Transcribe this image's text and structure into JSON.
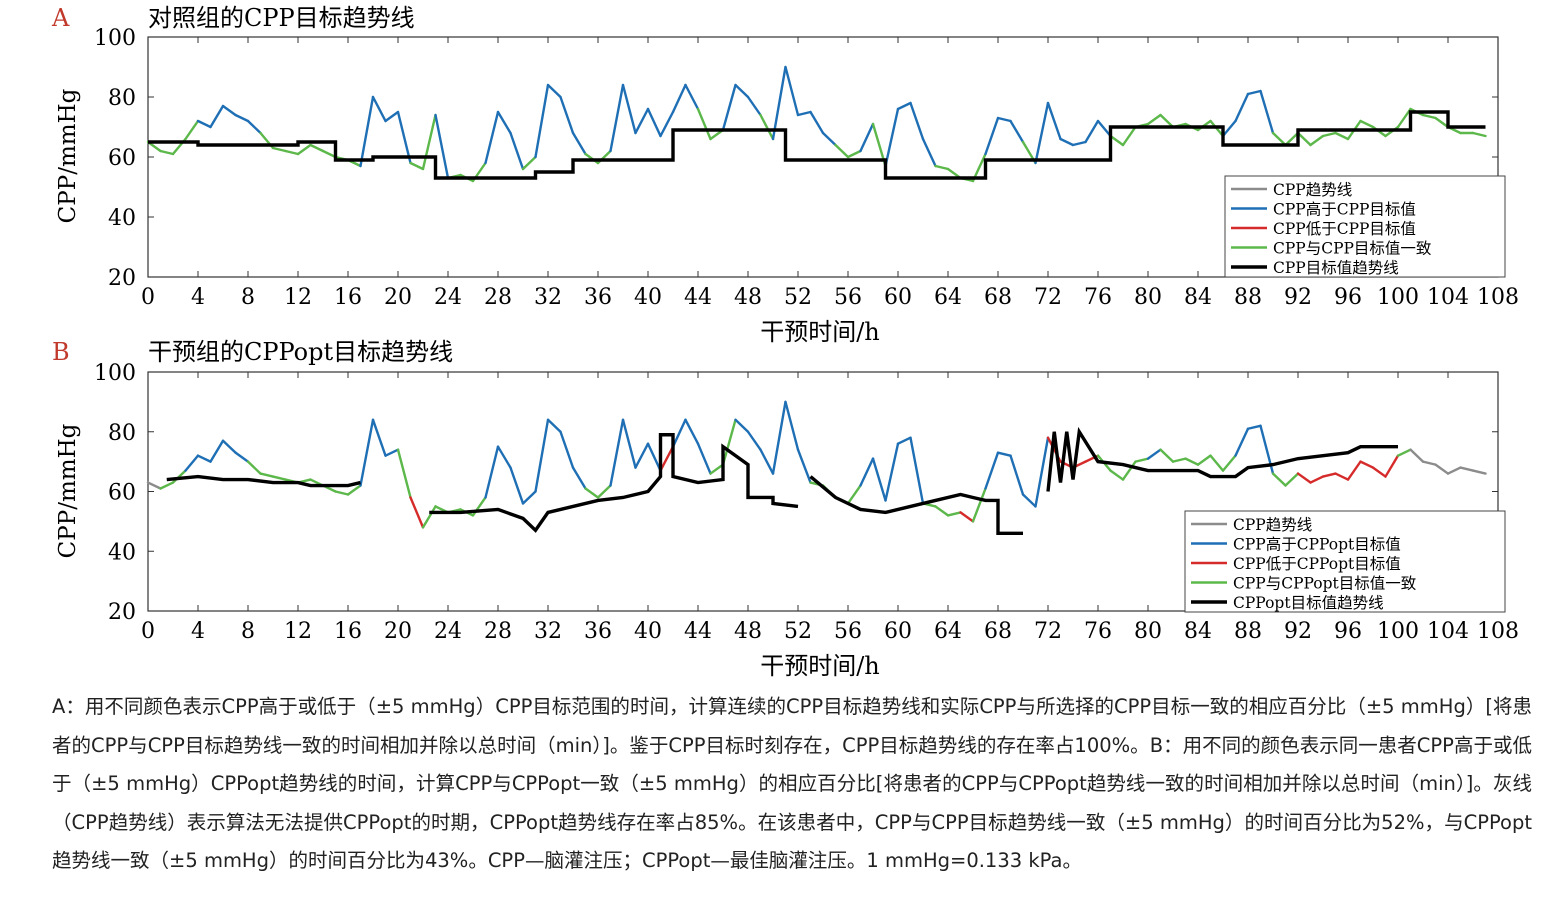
{
  "chart_data": [
    {
      "panel_letter": "A",
      "type": "line",
      "title": "对照组的CPP目标趋势线",
      "xlabel": "干预时间/h",
      "ylabel": "CPP/mmHg",
      "xlim": [
        0,
        108
      ],
      "ylim": [
        20,
        100
      ],
      "xticks": [
        "0",
        "4",
        "8",
        "12",
        "16",
        "20",
        "24",
        "28",
        "32",
        "36",
        "40",
        "44",
        "48",
        "52",
        "56",
        "60",
        "64",
        "68",
        "72",
        "76",
        "80",
        "84",
        "88",
        "92",
        "96",
        "100",
        "104",
        "108"
      ],
      "yticks": [
        "20",
        "40",
        "60",
        "80",
        "100"
      ],
      "grid": false,
      "legend_position": "bottom-right",
      "legend": [
        {
          "label": "CPP趋势线",
          "color": "#8c8c8c"
        },
        {
          "label": "CPP高于CPP目标值",
          "color": "#1f6fb5"
        },
        {
          "label": "CPP低于CPP目标值",
          "color": "#d62b2b"
        },
        {
          "label": "CPP与CPP目标值一致",
          "color": "#5cb84a"
        },
        {
          "label": "CPP目标值趋势线",
          "color": "#000000"
        }
      ],
      "target_trend": [
        [
          0,
          65
        ],
        [
          4,
          65
        ],
        [
          4,
          64
        ],
        [
          12,
          64
        ],
        [
          12,
          65
        ],
        [
          15,
          65
        ],
        [
          15,
          59
        ],
        [
          18,
          59
        ],
        [
          18,
          60
        ],
        [
          23,
          60
        ],
        [
          23,
          53
        ],
        [
          31,
          53
        ],
        [
          31,
          55
        ],
        [
          34,
          55
        ],
        [
          34,
          59
        ],
        [
          42,
          59
        ],
        [
          42,
          69
        ],
        [
          51,
          69
        ],
        [
          51,
          59
        ],
        [
          59,
          59
        ],
        [
          59,
          53
        ],
        [
          67,
          53
        ],
        [
          67,
          59
        ],
        [
          77,
          59
        ],
        [
          77,
          70
        ],
        [
          86,
          70
        ],
        [
          86,
          64
        ],
        [
          92,
          64
        ],
        [
          92,
          69
        ],
        [
          101,
          69
        ],
        [
          101,
          75
        ],
        [
          104,
          75
        ],
        [
          104,
          70
        ],
        [
          107,
          70
        ]
      ],
      "cpp_series": [
        [
          0,
          65
        ],
        [
          1,
          62
        ],
        [
          2,
          61
        ],
        [
          3,
          66
        ],
        [
          4,
          72
        ],
        [
          5,
          70
        ],
        [
          6,
          77
        ],
        [
          7,
          74
        ],
        [
          8,
          72
        ],
        [
          9,
          68
        ],
        [
          10,
          63
        ],
        [
          11,
          62
        ],
        [
          12,
          61
        ],
        [
          13,
          64
        ],
        [
          14,
          62
        ],
        [
          15,
          60
        ],
        [
          16,
          59
        ],
        [
          17,
          57
        ],
        [
          18,
          80
        ],
        [
          19,
          72
        ],
        [
          20,
          75
        ],
        [
          21,
          58
        ],
        [
          22,
          56
        ],
        [
          23,
          74
        ],
        [
          24,
          53
        ],
        [
          25,
          54
        ],
        [
          26,
          52
        ],
        [
          27,
          58
        ],
        [
          28,
          75
        ],
        [
          29,
          68
        ],
        [
          30,
          56
        ],
        [
          31,
          60
        ],
        [
          32,
          84
        ],
        [
          33,
          80
        ],
        [
          34,
          68
        ],
        [
          35,
          61
        ],
        [
          36,
          58
        ],
        [
          37,
          62
        ],
        [
          38,
          84
        ],
        [
          39,
          68
        ],
        [
          40,
          76
        ],
        [
          41,
          67
        ],
        [
          42,
          75
        ],
        [
          43,
          84
        ],
        [
          44,
          76
        ],
        [
          45,
          66
        ],
        [
          46,
          69
        ],
        [
          47,
          84
        ],
        [
          48,
          80
        ],
        [
          49,
          74
        ],
        [
          50,
          66
        ],
        [
          51,
          90
        ],
        [
          52,
          74
        ],
        [
          53,
          75
        ],
        [
          54,
          68
        ],
        [
          55,
          64
        ],
        [
          56,
          60
        ],
        [
          57,
          62
        ],
        [
          58,
          71
        ],
        [
          59,
          57
        ],
        [
          60,
          76
        ],
        [
          61,
          78
        ],
        [
          62,
          66
        ],
        [
          63,
          57
        ],
        [
          64,
          56
        ],
        [
          65,
          53
        ],
        [
          66,
          52
        ],
        [
          67,
          61
        ],
        [
          68,
          73
        ],
        [
          69,
          72
        ],
        [
          70,
          65
        ],
        [
          71,
          58
        ],
        [
          72,
          78
        ],
        [
          73,
          66
        ],
        [
          74,
          64
        ],
        [
          75,
          65
        ],
        [
          76,
          72
        ],
        [
          77,
          67
        ],
        [
          78,
          64
        ],
        [
          79,
          70
        ],
        [
          80,
          71
        ],
        [
          81,
          74
        ],
        [
          82,
          70
        ],
        [
          83,
          71
        ],
        [
          84,
          69
        ],
        [
          85,
          72
        ],
        [
          86,
          67
        ],
        [
          87,
          72
        ],
        [
          88,
          81
        ],
        [
          89,
          82
        ],
        [
          90,
          68
        ],
        [
          91,
          64
        ],
        [
          92,
          68
        ],
        [
          93,
          64
        ],
        [
          94,
          67
        ],
        [
          95,
          68
        ],
        [
          96,
          66
        ],
        [
          97,
          72
        ],
        [
          98,
          70
        ],
        [
          99,
          67
        ],
        [
          100,
          70
        ],
        [
          101,
          76
        ],
        [
          102,
          74
        ],
        [
          103,
          73
        ],
        [
          104,
          70
        ],
        [
          105,
          68
        ],
        [
          106,
          68
        ],
        [
          107,
          67
        ]
      ]
    },
    {
      "panel_letter": "B",
      "type": "line",
      "title": "干预组的CPPopt目标趋势线",
      "xlabel": "干预时间/h",
      "ylabel": "CPP/mmHg",
      "xlim": [
        0,
        108
      ],
      "ylim": [
        20,
        100
      ],
      "xticks": [
        "0",
        "4",
        "8",
        "12",
        "16",
        "20",
        "24",
        "28",
        "32",
        "36",
        "40",
        "44",
        "48",
        "52",
        "56",
        "60",
        "64",
        "68",
        "72",
        "76",
        "80",
        "84",
        "88",
        "92",
        "96",
        "100",
        "104",
        "108"
      ],
      "yticks": [
        "20",
        "40",
        "60",
        "80",
        "100"
      ],
      "grid": false,
      "legend_position": "bottom-right",
      "legend": [
        {
          "label": "CPP趋势线",
          "color": "#8c8c8c"
        },
        {
          "label": "CPP高于CPPopt目标值",
          "color": "#1f6fb5"
        },
        {
          "label": "CPP低于CPPopt目标值",
          "color": "#d62b2b"
        },
        {
          "label": "CPP与CPPopt目标值一致",
          "color": "#5cb84a"
        },
        {
          "label": "CPPopt目标值趋势线",
          "color": "#000000"
        }
      ],
      "target_trend": [
        [
          1.5,
          64
        ],
        [
          4,
          65
        ],
        [
          6,
          64
        ],
        [
          8,
          64
        ],
        [
          10,
          63
        ],
        [
          12,
          63
        ],
        [
          13,
          62
        ],
        [
          14,
          62
        ],
        [
          16,
          62
        ],
        [
          17,
          63
        ],
        null,
        [
          22.5,
          53
        ],
        [
          25,
          53
        ],
        [
          28,
          54
        ],
        [
          30,
          51
        ],
        [
          31,
          47
        ],
        [
          32,
          53
        ],
        [
          34,
          55
        ],
        [
          36,
          57
        ],
        [
          38,
          58
        ],
        [
          40,
          60
        ],
        [
          41,
          65
        ],
        [
          41,
          79
        ],
        [
          42,
          79
        ],
        [
          42,
          65
        ],
        [
          44,
          63
        ],
        [
          46,
          64
        ],
        [
          46,
          75
        ],
        [
          47,
          72
        ],
        [
          48,
          69
        ],
        [
          48,
          58
        ],
        [
          50,
          58
        ],
        [
          50,
          56
        ],
        [
          52,
          55
        ],
        null,
        [
          53,
          65
        ],
        [
          55,
          58
        ],
        [
          57,
          54
        ],
        [
          59,
          53
        ],
        [
          61,
          55
        ],
        [
          63,
          57
        ],
        [
          65,
          59
        ],
        [
          66,
          58
        ],
        [
          67,
          57
        ],
        [
          68,
          57
        ],
        [
          68,
          46
        ],
        [
          70,
          46
        ],
        null,
        [
          72,
          60
        ],
        [
          72.5,
          80
        ],
        [
          73,
          63
        ],
        [
          73.5,
          80
        ],
        [
          74,
          64
        ],
        [
          74.5,
          80
        ],
        [
          76,
          70
        ],
        [
          78,
          69
        ],
        [
          80,
          67
        ],
        [
          82,
          67
        ],
        [
          84,
          67
        ],
        [
          85,
          65
        ],
        [
          87,
          65
        ],
        [
          88,
          68
        ],
        [
          90,
          69
        ],
        [
          92,
          71
        ],
        [
          94,
          72
        ],
        [
          96,
          73
        ],
        [
          97,
          75
        ],
        [
          100,
          75
        ]
      ],
      "cpp_series": [
        [
          0,
          63
        ],
        [
          1,
          61
        ],
        [
          2,
          63
        ],
        [
          3,
          67
        ],
        [
          4,
          72
        ],
        [
          5,
          70
        ],
        [
          6,
          77
        ],
        [
          7,
          73
        ],
        [
          8,
          70
        ],
        [
          9,
          66
        ],
        [
          10,
          65
        ],
        [
          11,
          64
        ],
        [
          12,
          63
        ],
        [
          13,
          64
        ],
        [
          14,
          62
        ],
        [
          15,
          60
        ],
        [
          16,
          59
        ],
        [
          17,
          62
        ],
        [
          18,
          84
        ],
        [
          19,
          72
        ],
        [
          20,
          74
        ],
        [
          21,
          58
        ],
        [
          22,
          48
        ],
        [
          23,
          55
        ],
        [
          24,
          53
        ],
        [
          25,
          54
        ],
        [
          26,
          52
        ],
        [
          27,
          58
        ],
        [
          28,
          75
        ],
        [
          29,
          68
        ],
        [
          30,
          56
        ],
        [
          31,
          60
        ],
        [
          32,
          84
        ],
        [
          33,
          80
        ],
        [
          34,
          68
        ],
        [
          35,
          61
        ],
        [
          36,
          58
        ],
        [
          37,
          62
        ],
        [
          38,
          84
        ],
        [
          39,
          68
        ],
        [
          40,
          76
        ],
        [
          41,
          67
        ],
        [
          42,
          75
        ],
        [
          43,
          84
        ],
        [
          44,
          76
        ],
        [
          45,
          66
        ],
        [
          46,
          69
        ],
        [
          47,
          84
        ],
        [
          48,
          80
        ],
        [
          49,
          74
        ],
        [
          50,
          66
        ],
        [
          51,
          90
        ],
        [
          52,
          74
        ],
        [
          53,
          63
        ],
        [
          54,
          62
        ],
        [
          55,
          58
        ],
        [
          56,
          56
        ],
        [
          57,
          62
        ],
        [
          58,
          71
        ],
        [
          59,
          57
        ],
        [
          60,
          76
        ],
        [
          61,
          78
        ],
        [
          62,
          56
        ],
        [
          63,
          55
        ],
        [
          64,
          52
        ],
        [
          65,
          53
        ],
        [
          66,
          50
        ],
        [
          67,
          61
        ],
        [
          68,
          73
        ],
        [
          69,
          72
        ],
        [
          70,
          59
        ],
        [
          71,
          55
        ],
        [
          72,
          78
        ],
        [
          73,
          70
        ],
        [
          74,
          68
        ],
        [
          75,
          70
        ],
        [
          76,
          72
        ],
        [
          77,
          67
        ],
        [
          78,
          64
        ],
        [
          79,
          70
        ],
        [
          80,
          71
        ],
        [
          81,
          74
        ],
        [
          82,
          70
        ],
        [
          83,
          71
        ],
        [
          84,
          69
        ],
        [
          85,
          72
        ],
        [
          86,
          67
        ],
        [
          87,
          72
        ],
        [
          88,
          81
        ],
        [
          89,
          82
        ],
        [
          90,
          66
        ],
        [
          91,
          62
        ],
        [
          92,
          66
        ],
        [
          93,
          63
        ],
        [
          94,
          65
        ],
        [
          95,
          66
        ],
        [
          96,
          64
        ],
        [
          97,
          70
        ],
        [
          98,
          68
        ],
        [
          99,
          65
        ],
        [
          100,
          72
        ],
        [
          101,
          74
        ],
        [
          102,
          70
        ],
        [
          103,
          69
        ],
        [
          104,
          66
        ],
        [
          105,
          68
        ],
        [
          106,
          67
        ],
        [
          107,
          66
        ]
      ]
    }
  ],
  "caption": "A：用不同颜色表示CPP高于或低于（±5 mmHg）CPP目标范围的时间，计算连续的CPP目标趋势线和实际CPP与所选择的CPP目标一致的相应百分比（±5 mmHg）[将患者的CPP与CPP目标趋势线一致的时间相加并除以总时间（min）]。鉴于CPP目标时刻存在，CPP目标趋势线的存在率占100%。B：用不同的颜色表示同一患者CPP高于或低于（±5 mmHg）CPPopt趋势线的时间，计算CPP与CPPopt一致（±5 mmHg）的相应百分比[将患者的CPP与CPPopt趋势线一致的时间相加并除以总时间（min）]。灰线（CPP趋势线）表示算法无法提供CPPopt的时期，CPPopt趋势线存在率占85%。在该患者中，CPP与CPP目标趋势线一致（±5 mmHg）的时间百分比为52%，与CPPopt趋势线一致（±5 mmHg）的时间百分比为43%。CPP—脑灌注压；CPPopt—最佳脑灌注压。1 mmHg=0.133 kPa。",
  "colors": {
    "grey": "#8c8c8c",
    "above": "#1f6fb5",
    "below": "#d62b2b",
    "match": "#5cb84a",
    "target": "#000000",
    "letter": "#c0392b"
  }
}
